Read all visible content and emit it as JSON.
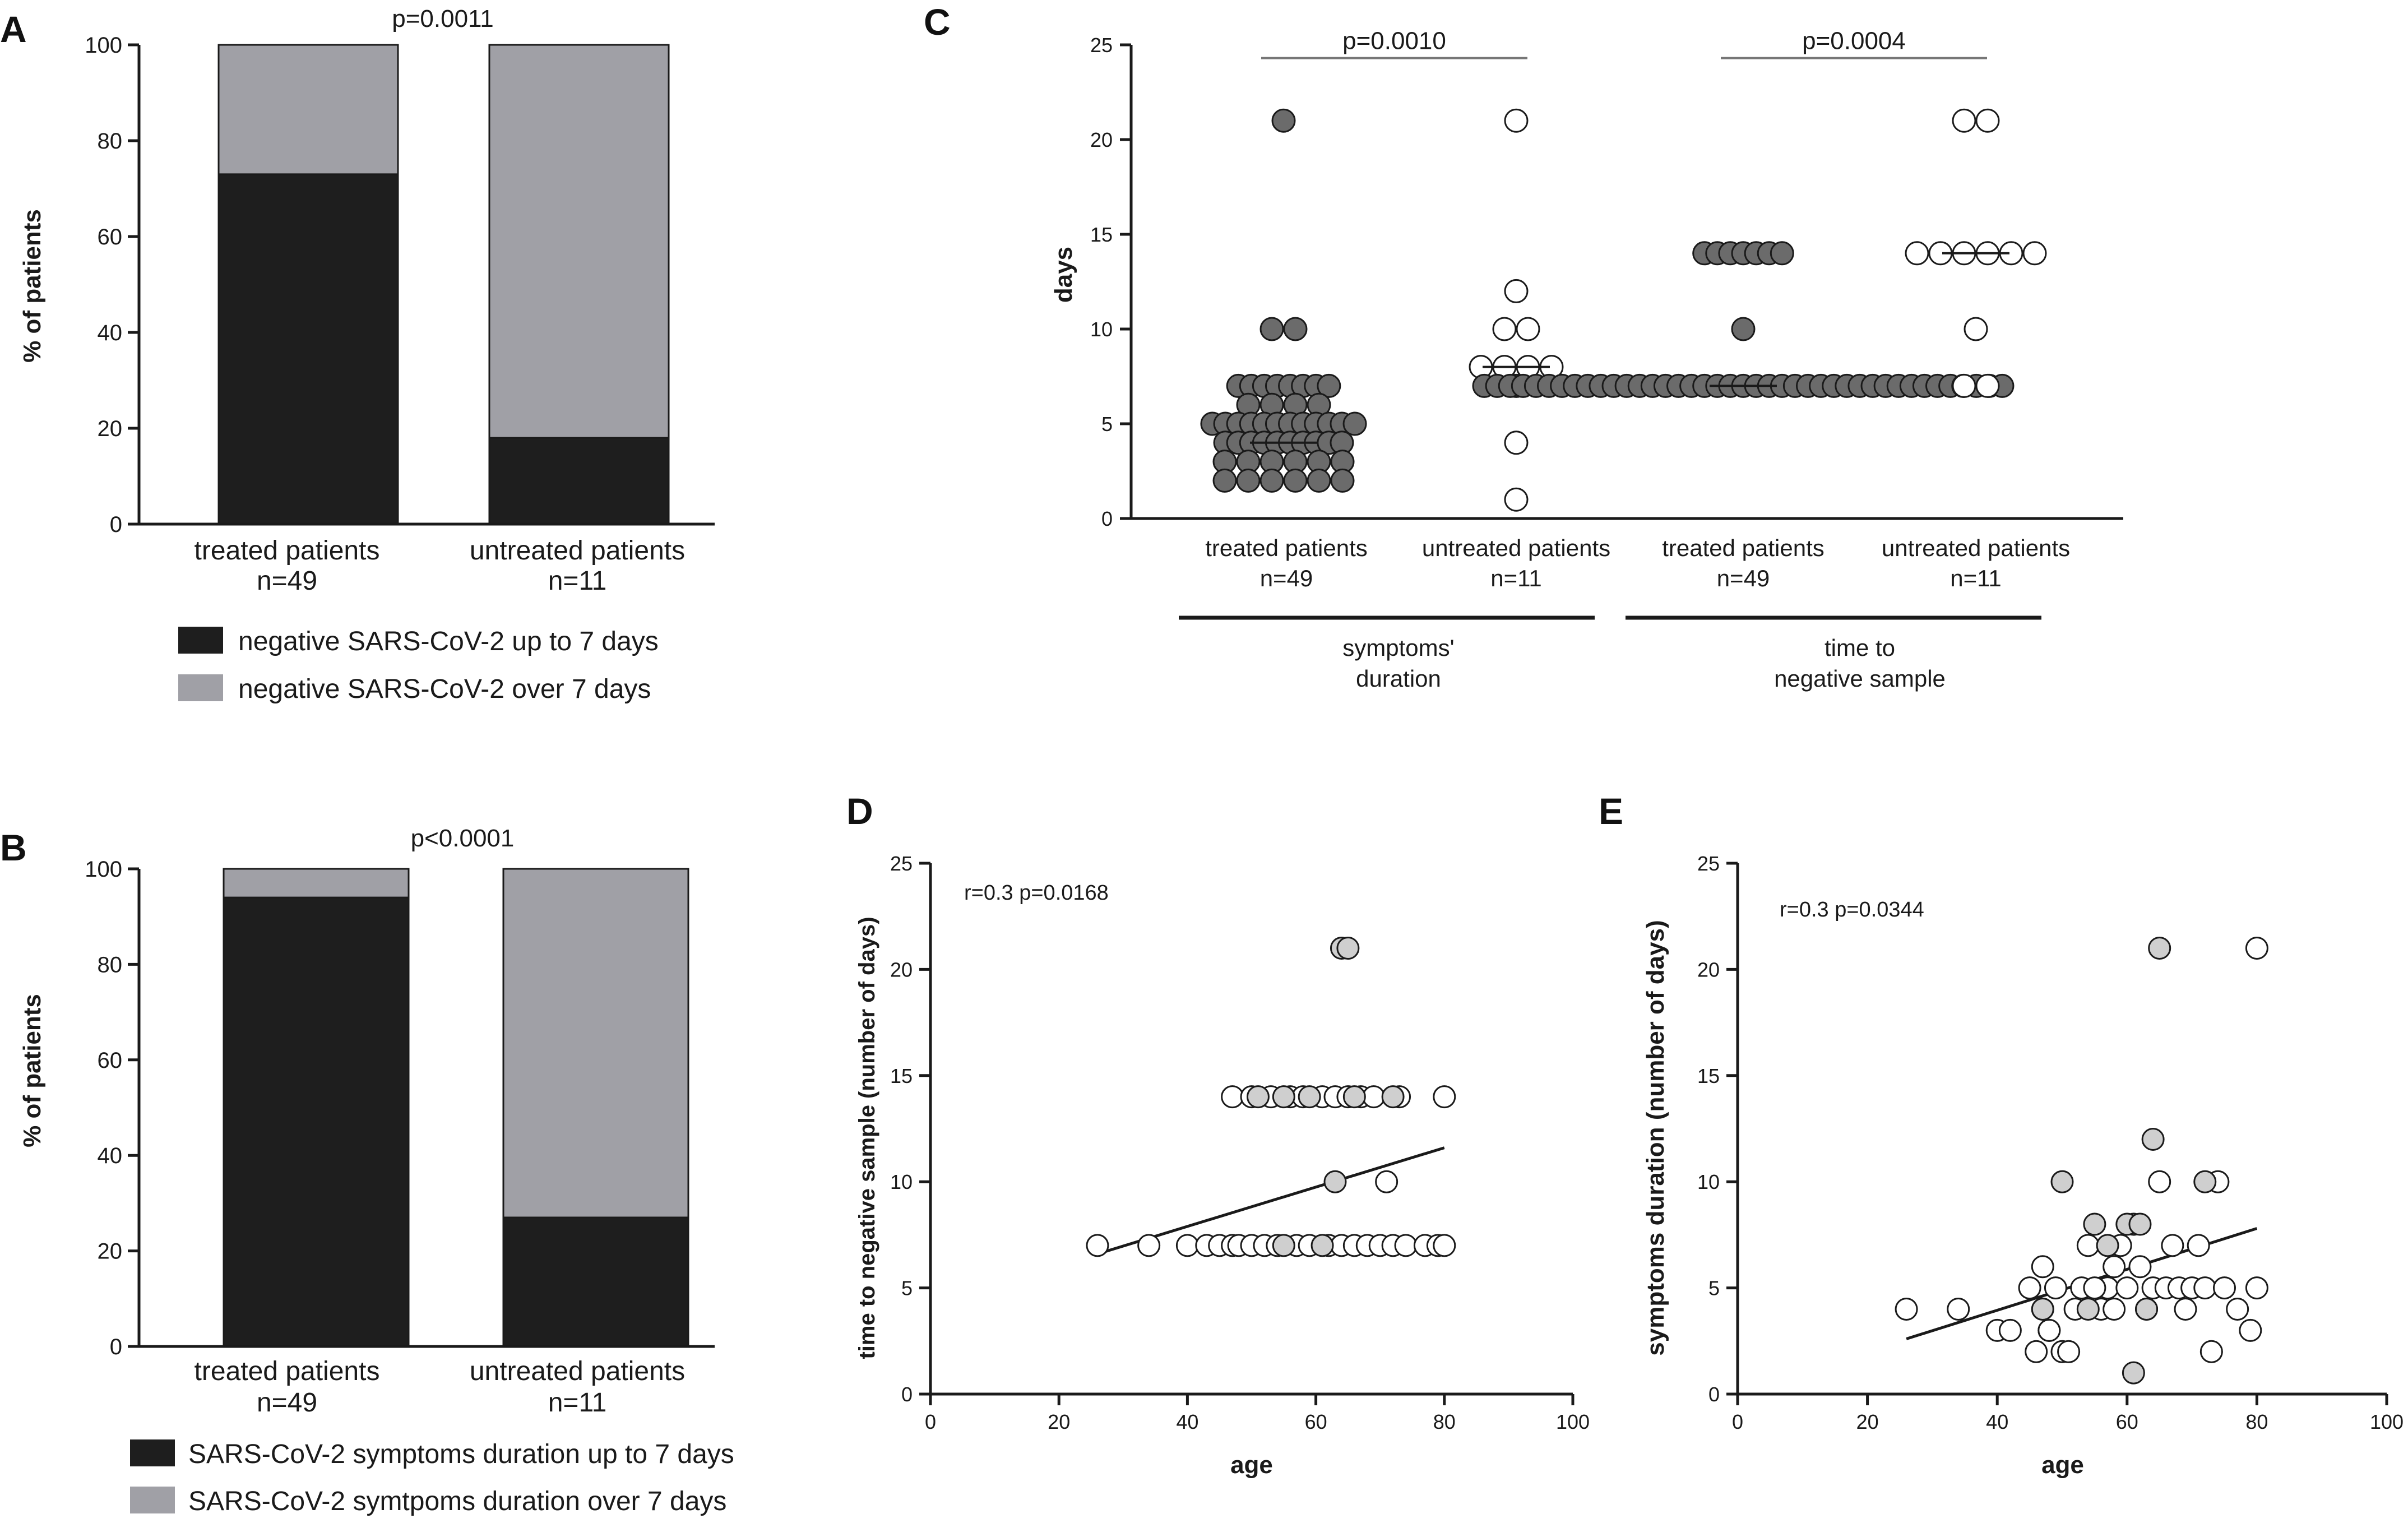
{
  "colors": {
    "black_bar": "#1e1e1e",
    "grey_bar": "#a0a0a6",
    "dot_dark": "#6b6b6b",
    "dot_light": "#cfcfcf",
    "dot_white": "#ffffff",
    "stroke": "#1a1a1a"
  },
  "chart_data": [
    {
      "panel": "A",
      "type": "bar",
      "stacked": true,
      "title": "p=0.0011",
      "ylabel": "% of patients",
      "ylim": [
        0,
        100
      ],
      "yticks": [
        0,
        20,
        40,
        60,
        80,
        100
      ],
      "categories": [
        {
          "line1": "treated patients",
          "line2": "n=49"
        },
        {
          "line1": "untreated patients",
          "line2": "n=11"
        }
      ],
      "series": [
        {
          "name": "negative SARS-CoV-2 up to 7 days",
          "values": [
            73,
            18
          ]
        },
        {
          "name": "negative SARS-CoV-2 over 7 days",
          "values": [
            27,
            82
          ]
        }
      ]
    },
    {
      "panel": "B",
      "type": "bar",
      "stacked": true,
      "title": "p<0.0001",
      "ylabel": "% of patients",
      "ylim": [
        0,
        100
      ],
      "yticks": [
        0,
        20,
        40,
        60,
        80,
        100
      ],
      "categories": [
        {
          "line1": "treated patients",
          "line2": "n=49"
        },
        {
          "line1": "untreated patients",
          "line2": "n=11"
        }
      ],
      "series": [
        {
          "name": "SARS-CoV-2 symptoms duration up to 7 days",
          "values": [
            94,
            27
          ]
        },
        {
          "name": "SARS-CoV-2 symtpoms duration over 7 days",
          "values": [
            6,
            73
          ]
        }
      ]
    },
    {
      "panel": "C",
      "type": "scatter",
      "ylabel": "days",
      "ylim": [
        0,
        25
      ],
      "yticks": [
        0,
        5,
        10,
        15,
        20,
        25
      ],
      "categories": [
        {
          "line1": "treated patients",
          "line2": "n=49"
        },
        {
          "line1": "untreated patients",
          "line2": "n=11"
        },
        {
          "line1": "treated patients",
          "line2": "n=49"
        },
        {
          "line1": "untreated patients",
          "line2": "n=11"
        }
      ],
      "groups": [
        {
          "line1": "symptoms'",
          "line2": "duration"
        },
        {
          "line1": "time to",
          "line2": "negative sample"
        }
      ],
      "comparisons": [
        {
          "label": "p=0.0010",
          "from": 0,
          "to": 1
        },
        {
          "label": "p=0.0004",
          "from": 2,
          "to": 3
        }
      ],
      "medians": [
        4,
        8,
        7,
        14
      ],
      "series": [
        {
          "name": "treated patients (symptoms' duration)",
          "fill": "dark",
          "values": [
            21,
            10,
            10,
            7,
            7,
            7,
            7,
            7,
            7,
            7,
            7,
            6,
            6,
            6,
            6,
            5,
            5,
            5,
            5,
            5,
            5,
            5,
            5,
            5,
            5,
            5,
            5,
            4,
            4,
            4,
            4,
            4,
            4,
            4,
            4,
            4,
            4,
            3,
            3,
            3,
            3,
            3,
            3,
            2,
            2,
            2,
            2,
            2,
            2
          ]
        },
        {
          "name": "untreated patients (symptoms' duration)",
          "fill": "white",
          "values": [
            21,
            12,
            10,
            10,
            8,
            8,
            8,
            8,
            7,
            4,
            1
          ]
        },
        {
          "name": "treated patients (time to negative sample)",
          "fill": "dark",
          "values": [
            14,
            14,
            14,
            14,
            14,
            14,
            14,
            10,
            7,
            7,
            7,
            7,
            7,
            7,
            7,
            7,
            7,
            7,
            7,
            7,
            7,
            7,
            7,
            7,
            7,
            7,
            7,
            7,
            7,
            7,
            7,
            7,
            7,
            7,
            7,
            7,
            7,
            7,
            7,
            7,
            7,
            7,
            7,
            7,
            7,
            7,
            7,
            7,
            7
          ]
        },
        {
          "name": "untreated patients (time to negative sample)",
          "fill": "white",
          "values": [
            21,
            21,
            14,
            14,
            14,
            14,
            14,
            14,
            10,
            7,
            7
          ]
        }
      ]
    },
    {
      "panel": "D",
      "type": "scatter",
      "annotation": "r=0.3 p=0.0168",
      "xlabel": "age",
      "ylabel": "time to negative sample (number of days)",
      "xlim": [
        0,
        100
      ],
      "xticks": [
        0,
        20,
        40,
        60,
        80,
        100
      ],
      "ylim": [
        0,
        25
      ],
      "yticks": [
        0,
        5,
        10,
        15,
        20,
        25
      ],
      "regression": {
        "x": [
          26,
          80
        ],
        "y": [
          6.6,
          11.6
        ]
      },
      "points_white": [
        [
          26,
          7
        ],
        [
          34,
          7
        ],
        [
          40,
          7
        ],
        [
          43,
          7
        ],
        [
          45,
          7
        ],
        [
          47,
          7
        ],
        [
          48,
          7
        ],
        [
          50,
          7
        ],
        [
          52,
          7
        ],
        [
          54,
          7
        ],
        [
          57,
          7
        ],
        [
          59,
          7
        ],
        [
          62,
          7
        ],
        [
          64,
          7
        ],
        [
          66,
          7
        ],
        [
          68,
          7
        ],
        [
          70,
          7
        ],
        [
          72,
          7
        ],
        [
          74,
          7
        ],
        [
          77,
          7
        ],
        [
          79,
          7
        ],
        [
          80,
          7
        ],
        [
          47,
          14
        ],
        [
          50,
          14
        ],
        [
          53,
          14
        ],
        [
          56,
          14
        ],
        [
          58,
          14
        ],
        [
          61,
          14
        ],
        [
          63,
          14
        ],
        [
          65,
          14
        ],
        [
          67,
          14
        ],
        [
          69,
          14
        ],
        [
          73,
          14
        ],
        [
          80,
          14
        ],
        [
          71,
          10
        ]
      ],
      "points_grey": [
        [
          51,
          14
        ],
        [
          55,
          14
        ],
        [
          59,
          14
        ],
        [
          66,
          14
        ],
        [
          72,
          14
        ],
        [
          63,
          10
        ],
        [
          55,
          7
        ],
        [
          61,
          7
        ],
        [
          64,
          21
        ],
        [
          65,
          21
        ]
      ]
    },
    {
      "panel": "E",
      "type": "scatter",
      "annotation": "r=0.3 p=0.0344",
      "xlabel": "age",
      "ylabel": "symptoms duration (number of days)",
      "xlim": [
        0,
        100
      ],
      "xticks": [
        0,
        20,
        40,
        60,
        80,
        100
      ],
      "ylim": [
        0,
        25
      ],
      "yticks": [
        0,
        5,
        10,
        15,
        20,
        25
      ],
      "regression": {
        "x": [
          26,
          80
        ],
        "y": [
          2.6,
          7.8
        ]
      },
      "points_white": [
        [
          26,
          4
        ],
        [
          34,
          4
        ],
        [
          40,
          3
        ],
        [
          42,
          3
        ],
        [
          45,
          5
        ],
        [
          46,
          2
        ],
        [
          47,
          4
        ],
        [
          48,
          3
        ],
        [
          47,
          6
        ],
        [
          49,
          5
        ],
        [
          50,
          2
        ],
        [
          51,
          2
        ],
        [
          52,
          4
        ],
        [
          53,
          5
        ],
        [
          54,
          7
        ],
        [
          56,
          4
        ],
        [
          57,
          5
        ],
        [
          58,
          6
        ],
        [
          59,
          7
        ],
        [
          60,
          5
        ],
        [
          61,
          8
        ],
        [
          62,
          6
        ],
        [
          63,
          4
        ],
        [
          64,
          5
        ],
        [
          65,
          10
        ],
        [
          66,
          5
        ],
        [
          67,
          7
        ],
        [
          68,
          5
        ],
        [
          69,
          4
        ],
        [
          70,
          5
        ],
        [
          71,
          7
        ],
        [
          72,
          5
        ],
        [
          73,
          2
        ],
        [
          74,
          10
        ],
        [
          75,
          5
        ],
        [
          77,
          4
        ],
        [
          79,
          3
        ],
        [
          80,
          5
        ],
        [
          80,
          21
        ],
        [
          55,
          5
        ],
        [
          48,
          3
        ],
        [
          58,
          4
        ]
      ],
      "points_grey": [
        [
          50,
          10
        ],
        [
          55,
          8
        ],
        [
          60,
          8
        ],
        [
          62,
          8
        ],
        [
          64,
          12
        ],
        [
          65,
          21
        ],
        [
          63,
          4
        ],
        [
          72,
          10
        ],
        [
          61,
          1
        ],
        [
          54,
          4
        ],
        [
          57,
          7
        ],
        [
          47,
          4
        ]
      ]
    }
  ]
}
